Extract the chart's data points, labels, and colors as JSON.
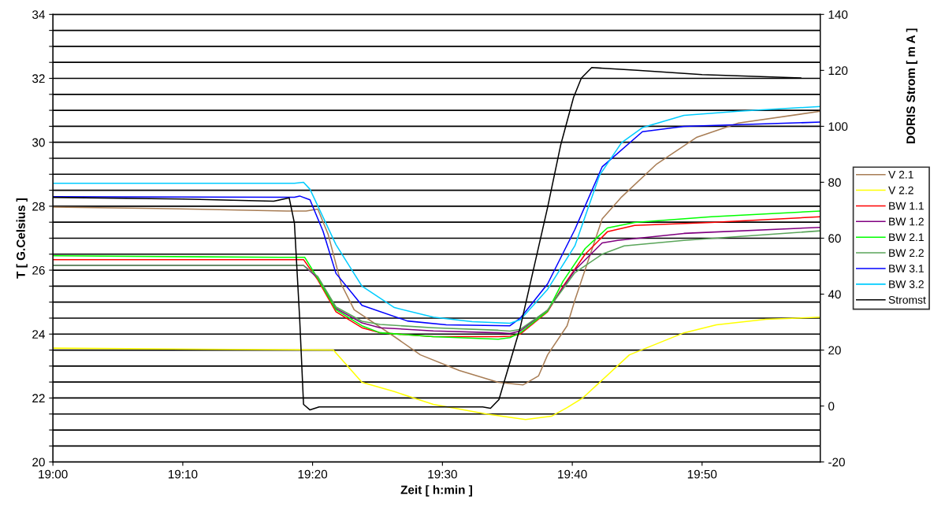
{
  "chart_data": {
    "type": "line",
    "xlabel": "Zeit [ h:min ]",
    "ylabel": "T [ G.Celsius ]",
    "y2label": "DORIS Strom [ m A ]",
    "xlim": [
      19,
      19.985
    ],
    "xticks": [
      {
        "value": 19.0,
        "label": "19:00"
      },
      {
        "value": 19.1667,
        "label": "19:10"
      },
      {
        "value": 19.3333,
        "label": "19:20"
      },
      {
        "value": 19.5,
        "label": "19:30"
      },
      {
        "value": 19.6667,
        "label": "19:40"
      },
      {
        "value": 19.8333,
        "label": "19:50"
      }
    ],
    "ylim": [
      20,
      34
    ],
    "yticks": [
      20,
      {
        "value": 20.5,
        "label": null
      },
      {
        "value": 21,
        "label": null
      },
      {
        "value": 21.5,
        "label": null
      },
      22,
      {
        "value": 22.5,
        "label": null
      },
      {
        "value": 23,
        "label": null
      },
      {
        "value": 23.5,
        "label": null
      },
      24,
      {
        "value": 24.5,
        "label": null
      },
      {
        "value": 25,
        "label": null
      },
      {
        "value": 25.5,
        "label": null
      },
      26,
      {
        "value": 26.5,
        "label": null
      },
      {
        "value": 27,
        "label": null
      },
      {
        "value": 27.5,
        "label": null
      },
      28,
      {
        "value": 28.5,
        "label": null
      },
      {
        "value": 29,
        "label": null
      },
      {
        "value": 29.5,
        "label": null
      },
      30,
      {
        "value": 30.5,
        "label": null
      },
      {
        "value": 31,
        "label": null
      },
      {
        "value": 31.5,
        "label": null
      },
      32,
      {
        "value": 32.5,
        "label": null
      },
      {
        "value": 33,
        "label": null
      },
      {
        "value": 33.5,
        "label": null
      },
      34
    ],
    "y2lim": [
      -20,
      140
    ],
    "y2ticks": [
      -20,
      0,
      20,
      40,
      60,
      80,
      100,
      120,
      140
    ],
    "grid": "y",
    "legend": "right",
    "marker": "none",
    "line_style": "solid",
    "series": [
      {
        "name": "V 2.1",
        "color": "#a87d55",
        "x": [
          19.0,
          19.1333,
          19.3,
          19.325,
          19.34,
          19.3533,
          19.37,
          19.3867,
          19.4383,
          19.4717,
          19.5217,
          19.5717,
          19.6033,
          19.6233,
          19.635,
          19.66,
          19.67,
          19.705,
          19.73,
          19.775,
          19.8267,
          19.88,
          19.985
        ],
        "values": [
          27.97,
          27.93,
          27.85,
          27.85,
          27.91,
          27.12,
          25.57,
          24.76,
          23.92,
          23.35,
          22.86,
          22.49,
          22.41,
          22.69,
          23.35,
          24.26,
          25.06,
          27.6,
          28.29,
          29.32,
          30.16,
          30.6,
          30.97
        ]
      },
      {
        "name": "V 2.2",
        "color": "#ffff00",
        "x": [
          19.0,
          19.36,
          19.3967,
          19.4383,
          19.4883,
          19.5567,
          19.6067,
          19.64,
          19.66,
          19.68,
          19.74,
          19.81,
          19.8517,
          19.915,
          19.985
        ],
        "values": [
          23.56,
          23.5,
          22.49,
          22.2,
          21.8,
          21.5,
          21.33,
          21.43,
          21.7,
          22.0,
          23.35,
          24.04,
          24.29,
          24.46,
          24.53
        ]
      },
      {
        "name": "BW 1.1",
        "color": "#ff0000",
        "x": [
          19.0,
          19.3217,
          19.34,
          19.3633,
          19.3967,
          19.42,
          19.4883,
          19.5717,
          19.5867,
          19.6,
          19.635,
          19.655,
          19.6833,
          19.7117,
          19.7467,
          19.845,
          19.985
        ],
        "values": [
          26.33,
          26.33,
          25.7,
          24.7,
          24.2,
          24.04,
          23.92,
          23.92,
          23.93,
          24.0,
          24.7,
          25.5,
          26.5,
          27.2,
          27.4,
          27.49,
          27.67
        ]
      },
      {
        "name": "BW 1.2",
        "color": "#800080",
        "x": [
          19.0,
          19.3217,
          19.34,
          19.3633,
          19.3967,
          19.42,
          19.4883,
          19.5717,
          19.5867,
          19.6,
          19.635,
          19.67,
          19.705,
          19.725,
          19.81,
          19.985
        ],
        "values": [
          26.15,
          26.15,
          25.75,
          24.8,
          24.35,
          24.2,
          24.1,
          24.04,
          24.02,
          24.1,
          24.75,
          26.0,
          26.85,
          26.93,
          27.15,
          27.34
        ]
      },
      {
        "name": "BW 2.1",
        "color": "#00ff00",
        "x": [
          19.0,
          19.2917,
          19.3233,
          19.34,
          19.3633,
          19.3967,
          19.42,
          19.4883,
          19.5717,
          19.5867,
          19.6,
          19.635,
          19.655,
          19.6833,
          19.7117,
          19.7467,
          19.845,
          19.985
        ],
        "values": [
          26.45,
          26.4,
          26.4,
          25.74,
          24.76,
          24.26,
          24.04,
          23.92,
          23.84,
          23.89,
          24.04,
          24.72,
          25.66,
          26.68,
          27.32,
          27.49,
          27.67,
          27.85
        ]
      },
      {
        "name": "BW 2.2",
        "color": "#5aa55a",
        "x": [
          19.0,
          19.3217,
          19.34,
          19.3633,
          19.3967,
          19.42,
          19.4883,
          19.5717,
          19.5867,
          19.6,
          19.635,
          19.67,
          19.705,
          19.7333,
          19.81,
          19.985
        ],
        "values": [
          26.15,
          26.15,
          25.8,
          24.85,
          24.4,
          24.3,
          24.2,
          24.12,
          24.09,
          24.15,
          24.75,
          25.92,
          26.5,
          26.76,
          26.93,
          27.23
        ]
      },
      {
        "name": "BW 3.1",
        "color": "#0000ff",
        "x": [
          19.0,
          19.31,
          19.3167,
          19.33,
          19.3467,
          19.3633,
          19.3967,
          19.455,
          19.505,
          19.5867,
          19.6,
          19.635,
          19.67,
          19.705,
          19.7567,
          19.81,
          19.985
        ],
        "values": [
          28.3,
          28.28,
          28.32,
          28.2,
          27.22,
          25.9,
          24.9,
          24.41,
          24.29,
          24.26,
          24.5,
          25.57,
          27.27,
          29.23,
          30.33,
          30.5,
          30.63
        ]
      },
      {
        "name": "BW 3.2",
        "color": "#00ccff",
        "x": [
          19.0,
          19.31,
          19.3217,
          19.33,
          19.3633,
          19.3967,
          19.4383,
          19.4883,
          19.5383,
          19.5867,
          19.6,
          19.635,
          19.67,
          19.7017,
          19.73,
          19.7567,
          19.81,
          19.88,
          19.985
        ],
        "values": [
          28.72,
          28.72,
          28.75,
          28.53,
          26.8,
          25.5,
          24.83,
          24.53,
          24.39,
          24.34,
          24.45,
          25.4,
          26.76,
          28.97,
          29.99,
          30.46,
          30.84,
          30.97,
          31.12
        ]
      },
      {
        "name": "Stromst",
        "color": "#000000",
        "axis": "y2",
        "x": [
          19.0,
          19.1667,
          19.2833,
          19.3033,
          19.31,
          19.3167,
          19.3217,
          19.33,
          19.3417,
          19.5517,
          19.5617,
          19.5725,
          19.6,
          19.635,
          19.6517,
          19.6683,
          19.6783,
          19.6917,
          19.75,
          19.8333,
          19.96
        ],
        "values": [
          74.6,
          74.0,
          73.2,
          74.4,
          65.4,
          31.5,
          0.6,
          -1.4,
          -0.3,
          -0.3,
          -0.8,
          2.3,
          28.2,
          71,
          93.2,
          110.3,
          117.2,
          121,
          120,
          118.5,
          117.3
        ]
      }
    ]
  }
}
